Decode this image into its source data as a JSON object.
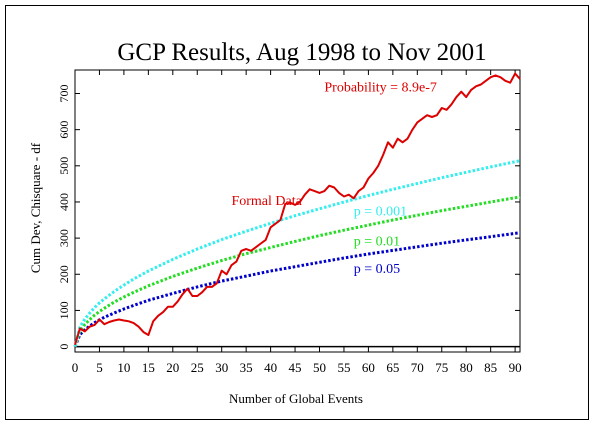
{
  "chart_data": {
    "type": "line",
    "title": "GCP Results, Aug 1998 to Nov 2001",
    "xlabel": "Number of Global Events",
    "ylabel": "Cum Dev, Chisquare - df",
    "xlim": [
      0,
      91
    ],
    "ylim": [
      -15,
      765
    ],
    "xticks": [
      0,
      5,
      10,
      15,
      20,
      25,
      30,
      35,
      40,
      45,
      50,
      55,
      60,
      65,
      70,
      75,
      80,
      85,
      90
    ],
    "yticks": [
      0,
      100,
      200,
      300,
      400,
      500,
      600,
      700
    ],
    "grid": false,
    "annotations": [
      {
        "text": "Probability = 8.9e-7",
        "x": 51,
        "y": 705,
        "color": "#dd0000"
      },
      {
        "text": "Formal Data",
        "x": 32,
        "y": 392,
        "color": "#dd0000"
      }
    ],
    "series": [
      {
        "name": "Formal Data",
        "color": "#dd0000",
        "style": "solid",
        "x": [
          0,
          1,
          2,
          3,
          4,
          5,
          6,
          7,
          8,
          9,
          10,
          11,
          12,
          13,
          14,
          15,
          16,
          17,
          18,
          19,
          20,
          21,
          22,
          23,
          24,
          25,
          26,
          27,
          28,
          29,
          30,
          31,
          32,
          33,
          34,
          35,
          36,
          37,
          38,
          39,
          40,
          41,
          42,
          43,
          44,
          45,
          46,
          47,
          48,
          49,
          50,
          51,
          52,
          53,
          54,
          55,
          56,
          57,
          58,
          59,
          60,
          61,
          62,
          63,
          64,
          65,
          66,
          67,
          68,
          69,
          70,
          71,
          72,
          73,
          74,
          75,
          76,
          77,
          78,
          79,
          80,
          81,
          82,
          83,
          84,
          85,
          86,
          87,
          88,
          89,
          90,
          91
        ],
        "y": [
          5,
          50,
          42,
          55,
          60,
          75,
          62,
          68,
          72,
          75,
          72,
          70,
          65,
          55,
          40,
          32,
          70,
          85,
          95,
          110,
          110,
          125,
          145,
          160,
          140,
          140,
          150,
          165,
          165,
          175,
          210,
          200,
          225,
          235,
          265,
          270,
          265,
          275,
          285,
          295,
          330,
          340,
          350,
          395,
          398,
          392,
          400,
          420,
          435,
          430,
          425,
          430,
          445,
          440,
          425,
          415,
          420,
          410,
          430,
          440,
          465,
          480,
          500,
          530,
          565,
          550,
          575,
          565,
          575,
          600,
          620,
          630,
          640,
          635,
          640,
          660,
          655,
          670,
          690,
          705,
          690,
          710,
          720,
          725,
          735,
          745,
          750,
          745,
          735,
          730,
          755,
          740
        ]
      },
      {
        "name": "p = 0.001",
        "color": "#33eeee",
        "style": "dotted",
        "x": [
          0,
          1,
          2,
          3,
          4,
          5,
          6,
          8,
          10,
          12,
          15,
          20,
          25,
          30,
          35,
          40,
          45,
          50,
          55,
          60,
          65,
          70,
          75,
          80,
          85,
          91
        ],
        "y": [
          0,
          54,
          76,
          93,
          108,
          121,
          132,
          152,
          170,
          187,
          209,
          241,
          270,
          296,
          319,
          341,
          362,
          381,
          400,
          418,
          435,
          451,
          467,
          482,
          497,
          514
        ]
      },
      {
        "name": "p = 0.01",
        "color": "#22dd22",
        "style": "dotted",
        "x": [
          0,
          1,
          2,
          3,
          4,
          5,
          6,
          8,
          10,
          12,
          15,
          20,
          25,
          30,
          35,
          40,
          45,
          50,
          55,
          60,
          65,
          70,
          75,
          80,
          85,
          91
        ],
        "y": [
          0,
          43,
          61,
          75,
          87,
          97,
          106,
          123,
          137,
          150,
          168,
          194,
          217,
          238,
          257,
          274,
          291,
          307,
          322,
          336,
          350,
          363,
          376,
          388,
          400,
          414
        ]
      },
      {
        "name": "p = 0.05",
        "color": "#0000cc",
        "style": "dotted",
        "x": [
          0,
          1,
          2,
          3,
          4,
          5,
          6,
          8,
          10,
          12,
          15,
          20,
          25,
          30,
          35,
          40,
          45,
          50,
          55,
          60,
          65,
          70,
          75,
          80,
          85,
          91
        ],
        "y": [
          0,
          33,
          46,
          57,
          66,
          74,
          81,
          93,
          104,
          114,
          128,
          147,
          165,
          181,
          195,
          209,
          221,
          233,
          245,
          256,
          266,
          276,
          286,
          295,
          304,
          315
        ]
      }
    ],
    "series_labels": [
      {
        "text": "p = 0.001",
        "color": "#33eeee"
      },
      {
        "text": "p = 0.01",
        "color": "#22dd22"
      },
      {
        "text": "p = 0.05",
        "color": "#0000cc"
      }
    ],
    "series_label_xy": [
      [
        57,
        363
      ],
      [
        57,
        280
      ],
      [
        57,
        204
      ]
    ]
  }
}
